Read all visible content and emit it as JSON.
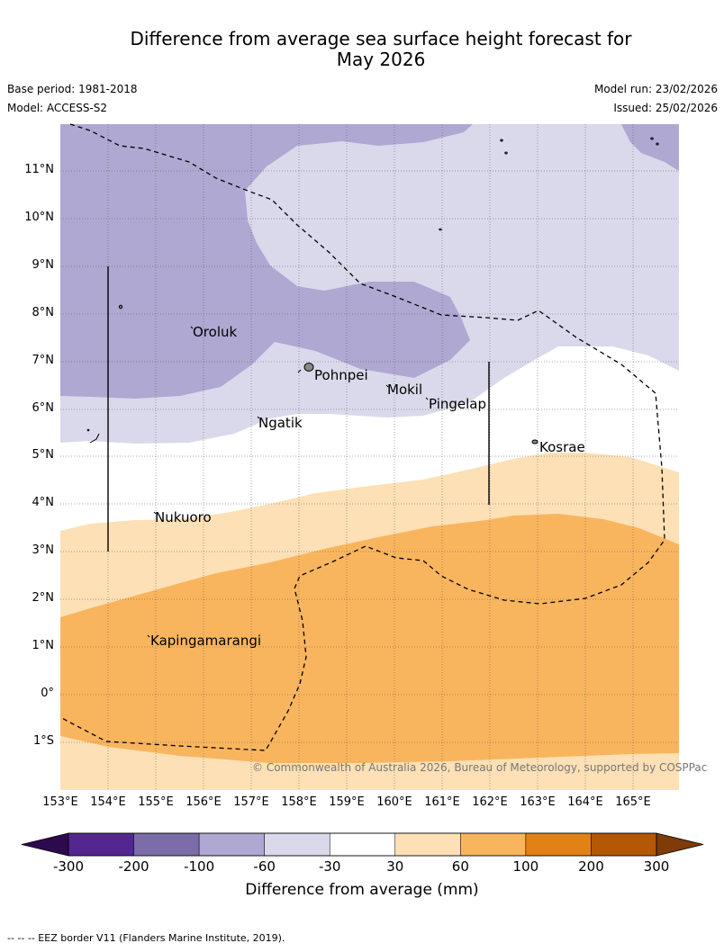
{
  "header": {
    "title_line1": "Difference from average sea surface height forecast for",
    "title_line2": "May 2026",
    "base_period": "Base period: 1981-2018",
    "model": "Model: ACCESS-S2",
    "model_run": "Model run: 23/02/2026",
    "issued": "Issued: 25/02/2026"
  },
  "map": {
    "latitude_labels": [
      "11°N",
      "10°N",
      "9°N",
      "8°N",
      "7°N",
      "6°N",
      "5°N",
      "4°N",
      "3°N",
      "2°N",
      "1°N",
      "0°",
      "1°S"
    ],
    "longitude_labels": [
      "153°E",
      "154°E",
      "155°E",
      "156°E",
      "157°E",
      "158°E",
      "159°E",
      "160°E",
      "161°E",
      "162°E",
      "163°E",
      "164°E",
      "165°E"
    ],
    "places": [
      "Oroluk",
      "Pohnpei",
      "Mokil",
      "Pingelap",
      "Ngatik",
      "Kosrae",
      "Nukuoro",
      "Kapingamarangi"
    ],
    "credit": "© Commonwealth of Australia 2026, Bureau of Meteorology, supported by COSPPac"
  },
  "colorbar": {
    "ticks": [
      "-300",
      "-200",
      "-100",
      "-60",
      "-30",
      "30",
      "60",
      "100",
      "200",
      "300"
    ],
    "colors": [
      "#2d0a4e",
      "#54278f",
      "#7c6daa",
      "#afa8d2",
      "#d9d9eb",
      "#ffffff",
      "#fde0b5",
      "#f9b55e",
      "#e08214",
      "#b35806",
      "#7f3b08"
    ],
    "title": "Difference from average (mm)"
  },
  "footnote": "-- -- -- EEZ border V11 (Flanders Marine Institute, 2019)."
}
